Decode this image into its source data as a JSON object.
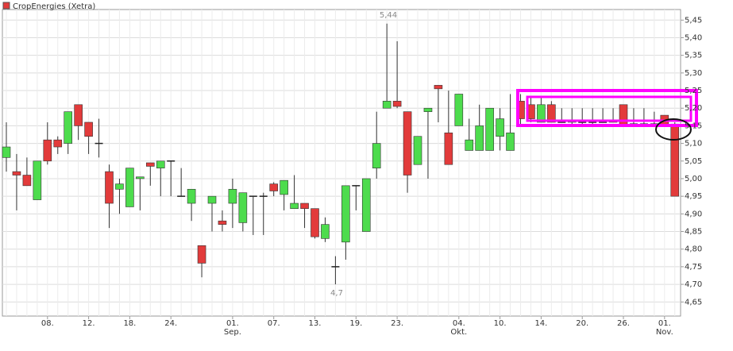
{
  "chart_data": {
    "type": "candlestick",
    "name": "CropEnergies (Xetra)",
    "up_color": "#4ddc4d",
    "down_color": "#e23b3b",
    "doji_color": "#222222",
    "categories": [
      null,
      null,
      null,
      null,
      "08.",
      null,
      null,
      null,
      "12.",
      null,
      null,
      null,
      "18.",
      null,
      null,
      null,
      "24.",
      null,
      null,
      null,
      null,
      null,
      "01.\nSep.",
      null,
      null,
      null,
      "07.",
      null,
      null,
      null,
      "13.",
      null,
      null,
      null,
      "19.",
      null,
      null,
      null,
      "23.",
      null,
      null,
      null,
      null,
      null,
      "04.\nOkt.",
      null,
      null,
      null,
      "10.",
      null,
      null,
      null,
      "14.",
      null,
      null,
      null,
      "20.",
      null,
      null,
      null,
      "26.",
      null,
      null,
      null,
      "01.\nNov.",
      null
    ],
    "open": [
      5.06,
      5.02,
      5.01,
      4.94,
      5.11,
      5.11,
      5.1,
      5.21,
      5.16,
      5.1,
      5.02,
      4.97,
      4.92,
      5.0,
      5.045,
      5.03,
      5.05,
      4.95,
      4.93,
      4.81,
      4.93,
      4.88,
      4.93,
      4.875,
      4.95,
      4.95,
      4.985,
      4.955,
      4.915,
      4.93,
      4.915,
      4.83,
      4.75,
      4.82,
      4.98,
      4.85,
      5.03,
      5.2,
      5.22,
      5.19,
      5.04,
      5.19,
      5.265,
      5.13,
      5.15,
      5.08,
      5.08,
      5.08,
      5.12,
      5.08,
      5.22,
      5.21,
      5.16,
      5.21,
      5.16,
      5.16,
      5.16,
      5.16,
      5.16,
      5.165,
      5.21,
      5.155,
      5.155,
      5.155,
      5.18,
      5.155
    ],
    "high": [
      5.16,
      5.07,
      5.06,
      5.05,
      5.16,
      5.12,
      5.19,
      5.21,
      5.16,
      5.17,
      5.04,
      5.0,
      5.03,
      5.0,
      5.045,
      5.05,
      5.05,
      5.03,
      4.97,
      4.81,
      4.95,
      4.91,
      5.0,
      4.96,
      4.95,
      4.96,
      4.99,
      4.995,
      5.01,
      4.93,
      4.915,
      4.89,
      4.78,
      4.98,
      4.98,
      5.0,
      5.19,
      5.44,
      5.39,
      5.19,
      5.12,
      5.2,
      5.265,
      5.25,
      5.24,
      5.17,
      5.21,
      5.2,
      5.2,
      5.24,
      5.24,
      5.23,
      5.23,
      5.22,
      5.2,
      5.2,
      5.2,
      5.2,
      5.2,
      5.2,
      5.21,
      5.2,
      5.2,
      5.19,
      5.18,
      5.16
    ],
    "low": [
      5.02,
      4.91,
      4.98,
      4.94,
      5.04,
      5.07,
      5.07,
      5.11,
      5.07,
      5.06,
      4.86,
      4.9,
      4.92,
      4.91,
      4.98,
      4.95,
      4.95,
      4.95,
      4.88,
      4.72,
      4.85,
      4.85,
      4.86,
      4.85,
      4.84,
      4.84,
      4.95,
      4.91,
      4.915,
      4.86,
      4.83,
      4.82,
      4.7,
      4.77,
      4.91,
      4.85,
      5.0,
      5.2,
      5.2,
      4.96,
      5.04,
      5.0,
      5.16,
      5.04,
      5.15,
      5.08,
      5.08,
      5.08,
      5.08,
      5.08,
      5.15,
      5.16,
      5.16,
      5.16,
      5.16,
      5.155,
      5.155,
      5.155,
      5.16,
      5.16,
      5.15,
      5.15,
      5.15,
      5.15,
      5.15,
      4.95
    ],
    "close": [
      5.09,
      5.01,
      4.98,
      5.05,
      5.05,
      5.09,
      5.19,
      5.15,
      5.12,
      5.1,
      4.93,
      4.985,
      5.03,
      5.005,
      5.035,
      5.05,
      5.05,
      4.95,
      4.97,
      4.76,
      4.95,
      4.87,
      4.97,
      4.96,
      4.95,
      4.95,
      4.965,
      4.995,
      4.93,
      4.915,
      4.835,
      4.87,
      4.75,
      4.98,
      4.98,
      5.0,
      5.1,
      5.22,
      5.205,
      5.01,
      5.12,
      5.2,
      5.255,
      5.04,
      5.24,
      5.11,
      5.15,
      5.2,
      5.17,
      5.13,
      5.17,
      5.17,
      5.21,
      5.16,
      5.16,
      5.165,
      5.16,
      5.16,
      5.16,
      5.16,
      5.15,
      5.155,
      5.155,
      5.155,
      5.15,
      4.95
    ],
    "ylim": [
      4.61,
      5.48
    ],
    "yticks": [
      {
        "value": 4.65,
        "label": "4,65"
      },
      {
        "value": 4.7,
        "label": "4,70"
      },
      {
        "value": 4.75,
        "label": "4,75"
      },
      {
        "value": 4.8,
        "label": "4,80"
      },
      {
        "value": 4.85,
        "label": "4,85"
      },
      {
        "value": 4.9,
        "label": "4,90"
      },
      {
        "value": 4.95,
        "label": "4,95"
      },
      {
        "value": 5.0,
        "label": "5,00"
      },
      {
        "value": 5.05,
        "label": "5,05"
      },
      {
        "value": 5.1,
        "label": "5,10"
      },
      {
        "value": 5.15,
        "label": "5,15"
      },
      {
        "value": 5.2,
        "label": "5,20"
      },
      {
        "value": 5.25,
        "label": "5,25"
      },
      {
        "value": 5.3,
        "label": "5,30"
      },
      {
        "value": 5.35,
        "label": "5,35"
      },
      {
        "value": 5.4,
        "label": "5,40"
      },
      {
        "value": 5.45,
        "label": "5,45"
      }
    ],
    "grid": true,
    "annotations": [
      "5,44",
      "4,7"
    ]
  }
}
